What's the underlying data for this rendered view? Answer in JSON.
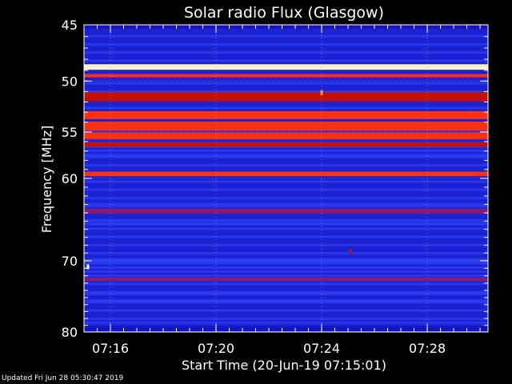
{
  "chart_data": {
    "type": "heatmap",
    "title": "Solar radio Flux (Glasgow)",
    "xlabel": "Start Time (20-Jun-19 07:15:01)",
    "ylabel": "Frequency [MHz]",
    "x_unit": "minutes after 07:15:01",
    "xlim": [
      0,
      15.3
    ],
    "ylim_frequency_mhz": [
      45,
      80
    ],
    "y_reversed": true,
    "y_scale": "log",
    "grid": true,
    "x_ticks": [
      {
        "value": 1,
        "label": "07:16"
      },
      {
        "value": 5,
        "label": "07:20"
      },
      {
        "value": 9,
        "label": "07:24"
      },
      {
        "value": 13,
        "label": "07:28"
      }
    ],
    "y_ticks": [
      {
        "value": 45,
        "label": "45"
      },
      {
        "value": 50,
        "label": "50"
      },
      {
        "value": 55,
        "label": "55"
      },
      {
        "value": 60,
        "label": "60"
      },
      {
        "value": 70,
        "label": "70"
      },
      {
        "value": 80,
        "label": "80"
      }
    ],
    "colormap": [
      "#0a0a60",
      "#1515c0",
      "#2a3af0",
      "#8a1a70",
      "#c01010",
      "#ff3010",
      "#ff9040",
      "#fff0c0"
    ],
    "background_level": 0.25,
    "bands": [
      {
        "freq_mhz": 45.2,
        "width_mhz": 0.3,
        "level": 0.1
      },
      {
        "freq_mhz": 48.7,
        "width_mhz": 0.5,
        "level": 1.0
      },
      {
        "freq_mhz": 49.5,
        "width_mhz": 0.3,
        "level": 0.7
      },
      {
        "freq_mhz": 51.5,
        "width_mhz": 0.9,
        "level": 0.5
      },
      {
        "freq_mhz": 53.3,
        "width_mhz": 0.8,
        "level": 0.65
      },
      {
        "freq_mhz": 54.4,
        "width_mhz": 0.9,
        "level": 0.75
      },
      {
        "freq_mhz": 55.4,
        "width_mhz": 0.7,
        "level": 0.7
      },
      {
        "freq_mhz": 56.3,
        "width_mhz": 0.5,
        "level": 0.5
      },
      {
        "freq_mhz": 59.5,
        "width_mhz": 0.5,
        "level": 0.7
      },
      {
        "freq_mhz": 63.8,
        "width_mhz": 0.6,
        "level": 0.45
      },
      {
        "freq_mhz": 65.3,
        "width_mhz": 0.4,
        "level": 0.35
      },
      {
        "freq_mhz": 72.5,
        "width_mhz": 0.5,
        "level": 0.45
      },
      {
        "freq_mhz": 79.5,
        "width_mhz": 0.8,
        "level": 0.1
      }
    ],
    "spikes": [
      {
        "time_min": 9.0,
        "freq_mhz": 51.1,
        "level": 0.85
      },
      {
        "time_min": 0.15,
        "freq_mhz": 70.8,
        "level": 1.0
      },
      {
        "time_min": 10.1,
        "freq_mhz": 68.8,
        "level": 0.6
      }
    ]
  },
  "footer": {
    "updated": "Updated Fri Jun 28 05:30:47 2019"
  }
}
